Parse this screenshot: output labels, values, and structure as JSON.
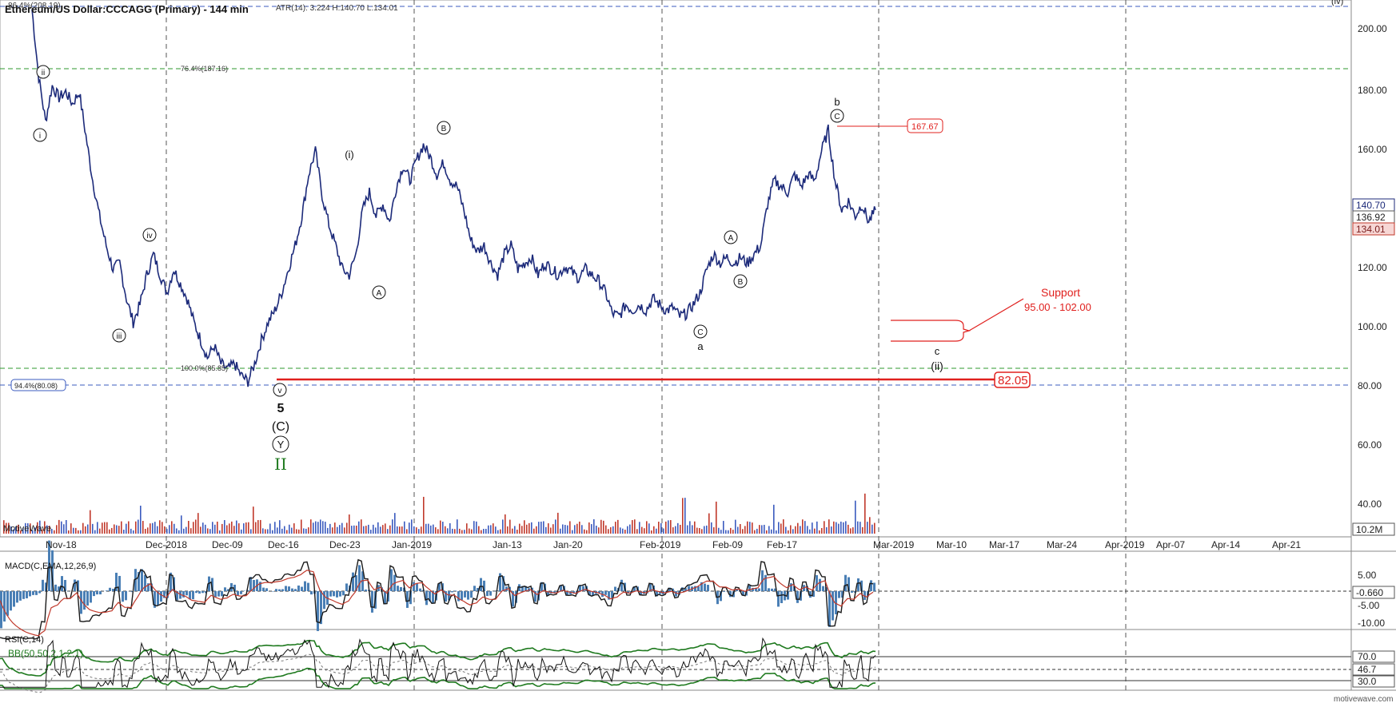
{
  "header": {
    "title": "Ethereum/US Dollar:CCCAGG (Primary) - 144 min",
    "atr": "ATR(14): 3.224 H:140.70 L:134.01",
    "corner_label": "(iv)",
    "watermark_left": "MotiveWave",
    "watermark_right": "motivewave.com"
  },
  "colors": {
    "candles": "#1c2a7a",
    "fib_green": "#2d9a2d",
    "fib_blue": "#3b5bbf",
    "support_red": "#e0201e",
    "grid": "#555555",
    "macd_line": "#1a1a1a",
    "macd_signal": "#c0392b",
    "macd_hist": "#4a7fb5",
    "rsi_line": "#111111",
    "bb_band": "#1f7a1f",
    "elliott_green": "#1f7a1f"
  },
  "chart_data": [
    {
      "type": "candlestick",
      "title": "Ethereum/US Dollar:CCCAGG (Primary) - 144 min",
      "x_ticks": [
        "Nov-18",
        "Dec-2018",
        "Dec-09",
        "Dec-16",
        "Dec-23",
        "Jan-2019",
        "Jan-13",
        "Jan-20",
        "Feb-2019",
        "Feb-09",
        "Feb-17",
        "Mar-2019",
        "Mar-10",
        "Mar-17",
        "Mar-24",
        "Apr-2019",
        "Apr-07",
        "Apr-14",
        "Apr-21"
      ],
      "y_ticks": [
        "40.00",
        "60.00",
        "80.00",
        "100.00",
        "120.00",
        "140.00",
        "160.00",
        "180.00",
        "200.00"
      ],
      "ylim": [
        34,
        210
      ],
      "price_path": [
        [
          0,
          208
        ],
        [
          2,
          185
        ],
        [
          4,
          170
        ],
        [
          6,
          182
        ],
        [
          8,
          178
        ],
        [
          10,
          180
        ],
        [
          12,
          176
        ],
        [
          14,
          180
        ],
        [
          16,
          165
        ],
        [
          18,
          150
        ],
        [
          20,
          138
        ],
        [
          22,
          128
        ],
        [
          24,
          120
        ],
        [
          26,
          122
        ],
        [
          28,
          110
        ],
        [
          30,
          102
        ],
        [
          32,
          108
        ],
        [
          34,
          118
        ],
        [
          36,
          125
        ],
        [
          38,
          118
        ],
        [
          40,
          112
        ],
        [
          42,
          120
        ],
        [
          44,
          115
        ],
        [
          46,
          110
        ],
        [
          48,
          102
        ],
        [
          50,
          96
        ],
        [
          52,
          90
        ],
        [
          54,
          94
        ],
        [
          56,
          88
        ],
        [
          58,
          86
        ],
        [
          60,
          88
        ],
        [
          62,
          84
        ],
        [
          64,
          82
        ],
        [
          66,
          88
        ],
        [
          68,
          96
        ],
        [
          70,
          102
        ],
        [
          72,
          106
        ],
        [
          74,
          112
        ],
        [
          76,
          120
        ],
        [
          78,
          128
        ],
        [
          80,
          138
        ],
        [
          82,
          152
        ],
        [
          84,
          160
        ],
        [
          86,
          145
        ],
        [
          88,
          135
        ],
        [
          90,
          128
        ],
        [
          92,
          120
        ],
        [
          94,
          118
        ],
        [
          96,
          125
        ],
        [
          98,
          140
        ],
        [
          100,
          146
        ],
        [
          102,
          138
        ],
        [
          104,
          142
        ],
        [
          106,
          136
        ],
        [
          108,
          148
        ],
        [
          110,
          155
        ],
        [
          112,
          150
        ],
        [
          114,
          157
        ],
        [
          116,
          162
        ],
        [
          118,
          158
        ],
        [
          120,
          152
        ],
        [
          122,
          156
        ],
        [
          124,
          150
        ],
        [
          126,
          148
        ],
        [
          128,
          140
        ],
        [
          130,
          130
        ],
        [
          132,
          126
        ],
        [
          134,
          128
        ],
        [
          136,
          122
        ],
        [
          138,
          118
        ],
        [
          140,
          125
        ],
        [
          142,
          128
        ],
        [
          144,
          120
        ],
        [
          146,
          122
        ],
        [
          148,
          124
        ],
        [
          150,
          118
        ],
        [
          152,
          122
        ],
        [
          154,
          120
        ],
        [
          156,
          118
        ],
        [
          158,
          121
        ],
        [
          160,
          119
        ],
        [
          162,
          117
        ],
        [
          164,
          120
        ],
        [
          166,
          118
        ],
        [
          168,
          116
        ],
        [
          170,
          112
        ],
        [
          172,
          105
        ],
        [
          174,
          104
        ],
        [
          176,
          108
        ],
        [
          178,
          106
        ],
        [
          180,
          108
        ],
        [
          182,
          106
        ],
        [
          184,
          110
        ],
        [
          186,
          108
        ],
        [
          188,
          106
        ],
        [
          190,
          107
        ],
        [
          192,
          104
        ],
        [
          194,
          105
        ],
        [
          196,
          108
        ],
        [
          198,
          112
        ],
        [
          200,
          120
        ],
        [
          202,
          125
        ],
        [
          204,
          122
        ],
        [
          206,
          124
        ],
        [
          208,
          122
        ],
        [
          210,
          124
        ],
        [
          212,
          122
        ],
        [
          214,
          125
        ],
        [
          216,
          128
        ],
        [
          218,
          142
        ],
        [
          220,
          150
        ],
        [
          222,
          148
        ],
        [
          224,
          146
        ],
        [
          226,
          152
        ],
        [
          228,
          148
        ],
        [
          230,
          152
        ],
        [
          232,
          150
        ],
        [
          234,
          160
        ],
        [
          236,
          167
        ],
        [
          238,
          150
        ],
        [
          240,
          140
        ],
        [
          242,
          143
        ],
        [
          244,
          138
        ],
        [
          246,
          142
        ],
        [
          248,
          136
        ],
        [
          250,
          140
        ]
      ],
      "price_readouts": {
        "high": "140.70",
        "last": "136.92",
        "low": "134.01"
      },
      "volume_readout": "10.2M"
    },
    {
      "type": "line",
      "title": "MACD(C,EMA,12,26,9)",
      "y_ticks": [
        "5.00",
        "0",
        "-5.00",
        "-10.00"
      ],
      "ylim": [
        -12,
        9
      ],
      "last_value": "-0.660"
    },
    {
      "type": "line",
      "title": "RSI(C,14)",
      "subtitle": "BB(50,50,2.1,2.1)",
      "y_ticks": [
        "70.0",
        "30.0"
      ],
      "ylim": [
        18,
        98
      ],
      "last_value": "46.7"
    }
  ],
  "fib_levels": {
    "level_top": "86.4%(208.19)",
    "level_764": "76.4%(187.16)",
    "level_100": "100.0%(85.85)",
    "level_944": "94.4%(80.08)"
  },
  "elliott_labels": {
    "ii": "ii",
    "i": "i",
    "iii": "iii",
    "iv": "iv",
    "v": "v",
    "five": "5",
    "c_paren": "(C)",
    "y": "Y",
    "roman_ii": "II",
    "paren_i": "(i)",
    "a_circ1": "A",
    "b_circ1": "B",
    "a_circ2": "A",
    "b_circ2": "B",
    "c_circ1": "C",
    "small_a": "a",
    "c_circ2": "C",
    "small_b": "b",
    "small_c": "c",
    "paren_ii": "(ii)"
  },
  "annotations": {
    "resistance_value": "167.67",
    "support_line1": "Support",
    "support_line2": "95.00 - 102.00",
    "key_level": "82.05"
  }
}
